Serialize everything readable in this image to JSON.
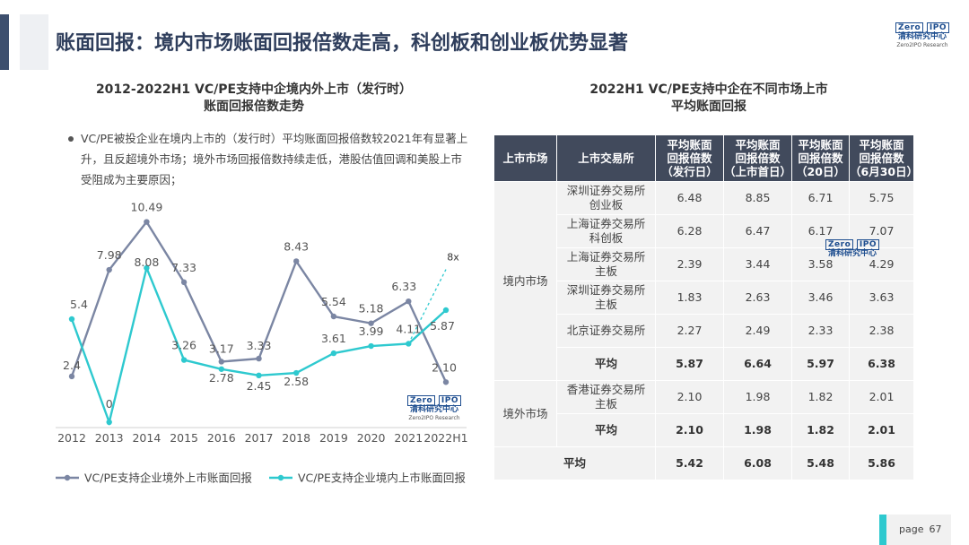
{
  "header": {
    "title": "账面回报：境内市场账面回报倍数走高，科创板和创业板优势显著"
  },
  "logo": {
    "top": "Zero",
    "top_right": "IPO",
    "mid": "清科研究中心",
    "bot": "Zero2IPO Research"
  },
  "left": {
    "title_line1": "2012-2022H1 VC/PE支持中企境内外上市（发行时）",
    "title_line2": "账面回报倍数走势",
    "bullet": "VC/PE被投企业在境内上市的（发行时）平均账面回报倍数较2021年有显著上升，且反超境外市场；境外市场回报倍数持续走低，港股估值回调和美股上市受阻成为主要原因；"
  },
  "chart_data": {
    "type": "line",
    "categories": [
      "2012",
      "2013",
      "2014",
      "2015",
      "2016",
      "2017",
      "2018",
      "2019",
      "2020",
      "2021",
      "2022H1"
    ],
    "series": [
      {
        "name": "VC/PE支持企业境外上市账面回报",
        "color": "#7b86a3",
        "values": [
          2.4,
          7.98,
          10.49,
          7.33,
          3.17,
          3.33,
          8.43,
          5.54,
          5.18,
          6.33,
          2.1
        ],
        "labels": [
          "2.4",
          "7.98",
          "10.49",
          "7.33",
          "3.17",
          "3.33",
          "8.43",
          "5.54",
          "5.18",
          "6.33",
          "2.10"
        ]
      },
      {
        "name": "VC/PE支持企业境内上市账面回报",
        "color": "#2ec9cf",
        "values": [
          5.4,
          0,
          8.08,
          3.26,
          2.78,
          2.45,
          2.58,
          3.61,
          3.99,
          4.11,
          5.87
        ],
        "labels": [
          "5.4",
          "0",
          "8.08",
          "3.26",
          "2.78",
          "2.45",
          "2.58",
          "3.61",
          "3.99",
          "4.11",
          "5.87"
        ]
      }
    ],
    "annotation": "8x",
    "annotation_value": 8.0,
    "ylim": [
      0,
      11
    ]
  },
  "right": {
    "title_line1": "2022H1 VC/PE支持中企在不同市场上市",
    "title_line2": "平均账面回报",
    "headers": [
      "上市市场",
      "上市交易所",
      "平均账面回报倍数（发行日）",
      "平均账面回报倍数（上市首日）",
      "平均账面回报倍数（20日）",
      "平均账面回报倍数（6月30日）"
    ],
    "header_lines": [
      [
        "上市市场"
      ],
      [
        "上市交易所"
      ],
      [
        "平均账面",
        "回报倍数",
        "（发行日）"
      ],
      [
        "平均账面",
        "回报倍数",
        "（上市首日）"
      ],
      [
        "平均账面",
        "回报倍数",
        "（20日）"
      ],
      [
        "平均账面",
        "回报倍数",
        "（6月30日）"
      ]
    ],
    "domestic_label": "境内市场",
    "overseas_label": "境外市场",
    "domestic_rows": [
      {
        "exchange": [
          "深圳证券交易所",
          "创业板"
        ],
        "values": [
          "6.48",
          "8.85",
          "6.71",
          "5.75"
        ]
      },
      {
        "exchange": [
          "上海证券交易所",
          "科创板"
        ],
        "values": [
          "6.28",
          "6.47",
          "6.17",
          "7.07"
        ]
      },
      {
        "exchange": [
          "上海证券交易所",
          "主板"
        ],
        "values": [
          "2.39",
          "3.44",
          "3.58",
          "4.29"
        ]
      },
      {
        "exchange": [
          "深圳证券交易所",
          "主板"
        ],
        "values": [
          "1.83",
          "2.63",
          "3.46",
          "3.63"
        ]
      },
      {
        "exchange": [
          "北京证券交易所"
        ],
        "values": [
          "2.27",
          "2.49",
          "2.33",
          "2.38"
        ]
      }
    ],
    "domestic_avg": {
      "label": "平均",
      "values": [
        "5.87",
        "6.64",
        "5.97",
        "6.38"
      ]
    },
    "overseas_rows": [
      {
        "exchange": [
          "香港证券交易所",
          "主板"
        ],
        "values": [
          "2.10",
          "1.98",
          "1.82",
          "2.01"
        ]
      }
    ],
    "overseas_avg": {
      "label": "平均",
      "values": [
        "2.10",
        "1.98",
        "1.82",
        "2.01"
      ]
    },
    "grand_avg": {
      "label": "平均",
      "values": [
        "5.42",
        "6.08",
        "5.48",
        "5.86"
      ]
    }
  },
  "footer": {
    "page_label": "page",
    "page_number": "67"
  }
}
